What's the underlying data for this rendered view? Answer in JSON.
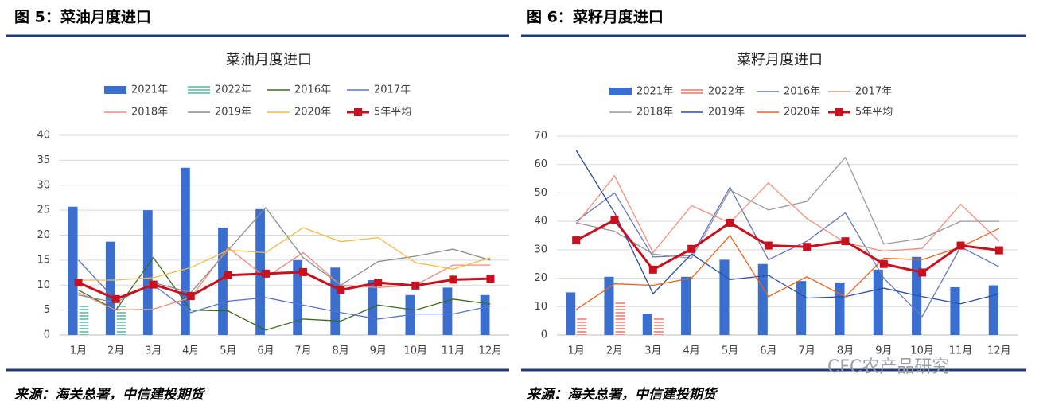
{
  "panels": [
    {
      "heading": "图 5：菜油月度进口",
      "source": "来源：海关总署，中信建投期货"
    },
    {
      "heading": "图 6：菜籽月度进口",
      "source": "来源：海关总署，中信建投期货"
    }
  ],
  "watermark": "CFC农产品研究",
  "chart_data": [
    {
      "type": "bar-line",
      "title": "菜油月度进口",
      "categories": [
        "1月",
        "2月",
        "3月",
        "4月",
        "5月",
        "6月",
        "7月",
        "8月",
        "9月",
        "10月",
        "11月",
        "12月"
      ],
      "ylim": [
        0,
        40
      ],
      "yticks": [
        0,
        5,
        10,
        15,
        20,
        25,
        30,
        35,
        40
      ],
      "grid": true,
      "series": [
        {
          "name": "2021年",
          "mark": "bar",
          "color": "#3a6fd0",
          "values": [
            25.7,
            18.7,
            25,
            33.5,
            21.5,
            25.2,
            15,
            13.5,
            11,
            8,
            9.5,
            8
          ]
        },
        {
          "name": "2022年",
          "mark": "hatched-bar",
          "color": "#2e9e8a",
          "values": [
            6,
            6,
            null,
            null,
            null,
            null,
            null,
            null,
            null,
            null,
            null,
            null
          ]
        },
        {
          "name": "2016年",
          "mark": "line",
          "color": "#3f6b1e",
          "values": [
            9,
            5,
            15.5,
            5,
            4.8,
            1,
            3.2,
            2.8,
            6,
            5,
            7.2,
            6.2
          ]
        },
        {
          "name": "2017年",
          "mark": "line",
          "color": "#5a74c8",
          "values": [
            15,
            7,
            10,
            4.5,
            6.8,
            7.5,
            6,
            4.5,
            3.2,
            4.2,
            4.2,
            5.8
          ]
        },
        {
          "name": "2018年",
          "mark": "line",
          "color": "#f08a7a",
          "values": [
            8.5,
            5,
            5.2,
            7.5,
            17.5,
            11.5,
            16.5,
            10,
            9.5,
            10,
            14,
            14
          ]
        },
        {
          "name": "2019年",
          "mark": "line",
          "color": "#8c8c8c",
          "values": [
            8,
            6.5,
            10.5,
            8.5,
            17,
            25.5,
            15.5,
            10,
            14.7,
            15.8,
            17.2,
            15
          ]
        },
        {
          "name": "2020年",
          "mark": "line",
          "color": "#f5b942",
          "values": [
            11,
            11,
            11.5,
            13.5,
            17,
            16.5,
            21.5,
            18.7,
            19.5,
            14.5,
            13.2,
            15.5
          ]
        },
        {
          "name": "5年平均",
          "mark": "line-marker",
          "color": "#c8101e",
          "values": [
            10.5,
            7.2,
            10.1,
            7.8,
            12,
            12.3,
            12.6,
            9,
            10.5,
            9.9,
            11.1,
            11.3
          ]
        }
      ]
    },
    {
      "type": "bar-line",
      "title": "菜籽月度进口",
      "categories": [
        "1月",
        "2月",
        "3月",
        "4月",
        "5月",
        "6月",
        "7月",
        "8月",
        "9月",
        "10月",
        "11月",
        "12月"
      ],
      "ylim": [
        0,
        70
      ],
      "yticks": [
        0,
        10,
        20,
        30,
        40,
        50,
        60,
        70
      ],
      "grid": true,
      "series": [
        {
          "name": "2021年",
          "mark": "bar",
          "color": "#3a6fd0",
          "values": [
            15,
            20.5,
            7.5,
            20.5,
            26.5,
            25,
            19,
            18.5,
            23,
            27.5,
            16.8,
            17.5
          ]
        },
        {
          "name": "2022年",
          "mark": "hatched-bar",
          "color": "#e8503a",
          "values": [
            6,
            12,
            6,
            null,
            null,
            null,
            null,
            null,
            null,
            null,
            null,
            null
          ]
        },
        {
          "name": "2016年",
          "mark": "line",
          "color": "#6a78c0",
          "values": [
            40,
            50,
            27.5,
            28,
            52,
            26.5,
            33,
            43,
            20,
            6.5,
            31,
            24
          ]
        },
        {
          "name": "2017年",
          "mark": "line",
          "color": "#f0907a",
          "values": [
            39,
            56,
            29,
            45.5,
            39.5,
            53.5,
            41,
            32.5,
            29.5,
            30.5,
            46,
            33
          ]
        },
        {
          "name": "2018年",
          "mark": "line",
          "color": "#9a9a9a",
          "values": [
            39.5,
            36.5,
            28.5,
            27,
            51,
            44,
            47,
            62.5,
            32,
            34,
            40,
            40
          ]
        },
        {
          "name": "2019年",
          "mark": "line",
          "color": "#2a4ea8",
          "values": [
            65,
            43,
            14.5,
            28.5,
            19.5,
            21,
            13,
            13.5,
            16.5,
            13.5,
            11,
            14.5
          ]
        },
        {
          "name": "2020年",
          "mark": "line",
          "color": "#e8641e",
          "values": [
            9,
            18,
            17.5,
            20,
            35,
            13.5,
            20.5,
            13.5,
            27,
            26.5,
            31,
            37.5
          ]
        },
        {
          "name": "5年平均",
          "mark": "line-marker",
          "color": "#c8101e",
          "values": [
            33.3,
            40.5,
            23,
            30.3,
            39.5,
            31.5,
            31,
            33,
            25,
            22,
            31.5,
            29.8
          ]
        }
      ]
    }
  ]
}
